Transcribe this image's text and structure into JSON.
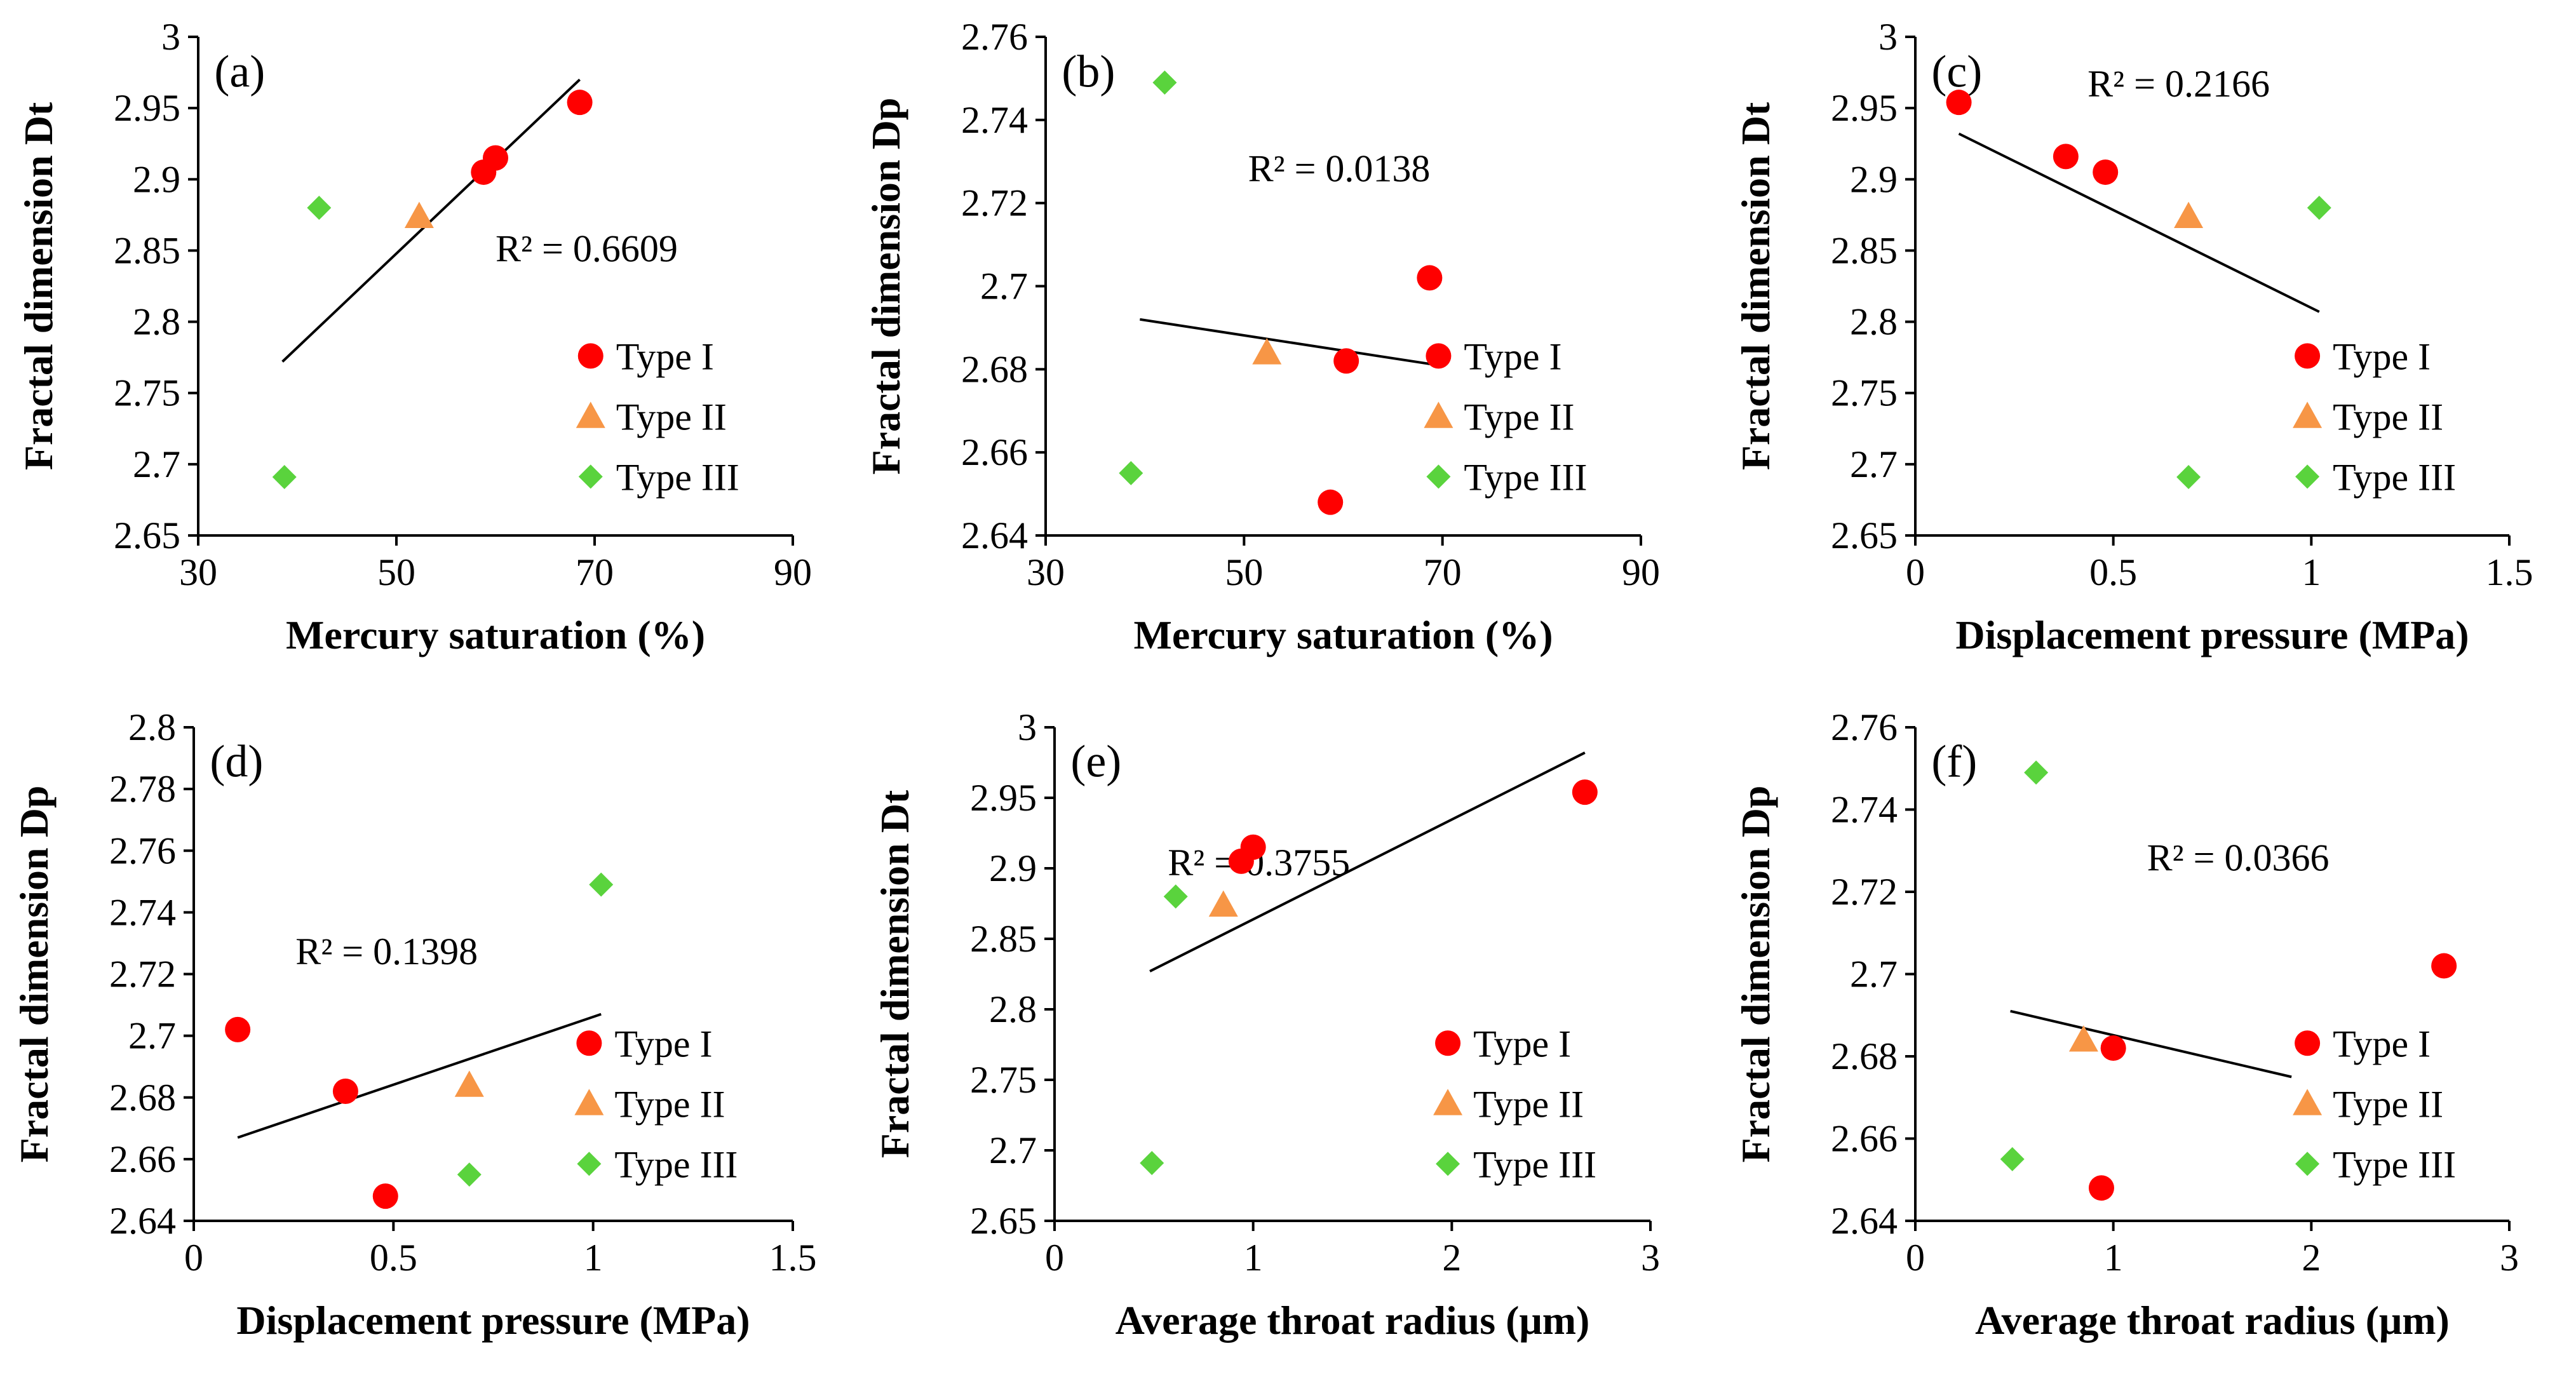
{
  "colors": {
    "type_i": "#ff0000",
    "type_ii": "#f79646",
    "type_iii": "#5ad33d",
    "line": "#000000"
  },
  "chart_data": [
    {
      "type": "scatter",
      "panel": "(a)",
      "xlabel": "Mercury saturation (%)",
      "ylabel": "Fractal dimension Dt",
      "xlim": [
        30,
        90
      ],
      "xticks": [
        30,
        50,
        70,
        90
      ],
      "xtick_labels": [
        "30",
        "50",
        "70",
        "90"
      ],
      "ylim": [
        2.65,
        3
      ],
      "yticks": [
        2.65,
        2.7,
        2.75,
        2.8,
        2.85,
        2.9,
        2.95,
        3
      ],
      "ytick_labels": [
        "2.65",
        "2.7",
        "2.75",
        "2.8",
        "2.85",
        "2.9",
        "2.95",
        "3"
      ],
      "r2": "R² = 0.6609",
      "trendline": {
        "x": [
          38.5,
          68.5
        ],
        "y": [
          2.772,
          2.97
        ]
      },
      "legend": [
        "Type I",
        "Type II",
        "Type III"
      ],
      "series": [
        {
          "name": "Type I",
          "marker": "circle",
          "x": [
            68.5,
            60.0,
            58.8
          ],
          "y": [
            2.954,
            2.915,
            2.905
          ]
        },
        {
          "name": "Type II",
          "marker": "triangle",
          "x": [
            52.3
          ],
          "y": [
            2.874
          ]
        },
        {
          "name": "Type III",
          "marker": "diamond",
          "x": [
            42.2,
            38.7
          ],
          "y": [
            2.88,
            2.691
          ]
        }
      ]
    },
    {
      "type": "scatter",
      "panel": "(b)",
      "xlabel": "Mercury saturation (%)",
      "ylabel": "Fractal dimension Dp",
      "xlim": [
        30,
        90
      ],
      "xticks": [
        30,
        50,
        70,
        90
      ],
      "xtick_labels": [
        "30",
        "50",
        "70",
        "90"
      ],
      "ylim": [
        2.64,
        2.76
      ],
      "yticks": [
        2.64,
        2.66,
        2.68,
        2.7,
        2.72,
        2.74,
        2.76
      ],
      "ytick_labels": [
        "2.64",
        "2.66",
        "2.68",
        "2.7",
        "2.72",
        "2.74",
        "2.76"
      ],
      "r2": "R² = 0.0138",
      "trendline": {
        "x": [
          39.5,
          69.5
        ],
        "y": [
          2.692,
          2.681
        ]
      },
      "legend": [
        "Type I",
        "Type II",
        "Type III"
      ],
      "series": [
        {
          "name": "Type I",
          "marker": "circle",
          "x": [
            68.7,
            60.3,
            58.7
          ],
          "y": [
            2.702,
            2.682,
            2.648
          ]
        },
        {
          "name": "Type II",
          "marker": "triangle",
          "x": [
            52.3
          ],
          "y": [
            2.684
          ]
        },
        {
          "name": "Type III",
          "marker": "diamond",
          "x": [
            42.0,
            38.6
          ],
          "y": [
            2.749,
            2.655
          ]
        }
      ]
    },
    {
      "type": "scatter",
      "panel": "(c)",
      "xlabel": "Displacement pressure (MPa)",
      "ylabel": "Fractal dimension Dt",
      "xlim": [
        0,
        1.5
      ],
      "xticks": [
        0,
        0.5,
        1,
        1.5
      ],
      "xtick_labels": [
        "0",
        "0.5",
        "1",
        "1.5"
      ],
      "ylim": [
        2.65,
        3
      ],
      "yticks": [
        2.65,
        2.7,
        2.75,
        2.8,
        2.85,
        2.9,
        2.95,
        3
      ],
      "ytick_labels": [
        "2.65",
        "2.7",
        "2.75",
        "2.8",
        "2.85",
        "2.9",
        "2.95",
        "3"
      ],
      "r2": "R² = 0.2166",
      "trendline": {
        "x": [
          0.11,
          1.02
        ],
        "y": [
          2.932,
          2.807
        ]
      },
      "legend": [
        "Type I",
        "Type II",
        "Type III"
      ],
      "series": [
        {
          "name": "Type I",
          "marker": "circle",
          "x": [
            0.11,
            0.38,
            0.48
          ],
          "y": [
            2.954,
            2.916,
            2.905
          ]
        },
        {
          "name": "Type II",
          "marker": "triangle",
          "x": [
            0.69
          ],
          "y": [
            2.874
          ]
        },
        {
          "name": "Type III",
          "marker": "diamond",
          "x": [
            1.02,
            0.69
          ],
          "y": [
            2.88,
            2.691
          ]
        }
      ]
    },
    {
      "type": "scatter",
      "panel": "(d)",
      "xlabel": "Displacement pressure (MPa)",
      "ylabel": "Fractal dimension Dp",
      "xlim": [
        0,
        1.5
      ],
      "xticks": [
        0,
        0.5,
        1,
        1.5
      ],
      "xtick_labels": [
        "0",
        "0.5",
        "1",
        "1.5"
      ],
      "ylim": [
        2.64,
        2.8
      ],
      "yticks": [
        2.64,
        2.66,
        2.68,
        2.7,
        2.72,
        2.74,
        2.76,
        2.78,
        2.8
      ],
      "ytick_labels": [
        "2.64",
        "2.66",
        "2.68",
        "2.7",
        "2.72",
        "2.74",
        "2.76",
        "2.78",
        "2.8"
      ],
      "r2": "R² = 0.1398",
      "trendline": {
        "x": [
          0.11,
          1.02
        ],
        "y": [
          2.667,
          2.707
        ]
      },
      "legend": [
        "Type I",
        "Type II",
        "Type III"
      ],
      "series": [
        {
          "name": "Type I",
          "marker": "circle",
          "x": [
            0.11,
            0.38,
            0.48
          ],
          "y": [
            2.702,
            2.682,
            2.648
          ]
        },
        {
          "name": "Type II",
          "marker": "triangle",
          "x": [
            0.69
          ],
          "y": [
            2.684
          ]
        },
        {
          "name": "Type III",
          "marker": "diamond",
          "x": [
            1.02,
            0.69
          ],
          "y": [
            2.749,
            2.655
          ]
        }
      ]
    },
    {
      "type": "scatter",
      "panel": "(e)",
      "xlabel": "Average throat radius (μm)",
      "ylabel": "Fractal dimension Dt",
      "xlim": [
        0,
        3
      ],
      "xticks": [
        0,
        1,
        2,
        3
      ],
      "xtick_labels": [
        "0",
        "1",
        "2",
        "3"
      ],
      "ylim": [
        2.65,
        3
      ],
      "yticks": [
        2.65,
        2.7,
        2.75,
        2.8,
        2.85,
        2.9,
        2.95,
        3
      ],
      "ytick_labels": [
        "2.65",
        "2.7",
        "2.75",
        "2.8",
        "2.85",
        "2.9",
        "2.95",
        "3"
      ],
      "r2": "R² = 0.3755",
      "trendline": {
        "x": [
          0.48,
          2.67
        ],
        "y": [
          2.827,
          2.982
        ]
      },
      "legend": [
        "Type I",
        "Type II",
        "Type III"
      ],
      "series": [
        {
          "name": "Type I",
          "marker": "circle",
          "x": [
            2.67,
            1.0,
            0.94
          ],
          "y": [
            2.954,
            2.915,
            2.905
          ]
        },
        {
          "name": "Type II",
          "marker": "triangle",
          "x": [
            0.85
          ],
          "y": [
            2.874
          ]
        },
        {
          "name": "Type III",
          "marker": "diamond",
          "x": [
            0.61,
            0.49
          ],
          "y": [
            2.88,
            2.691
          ]
        }
      ]
    },
    {
      "type": "scatter",
      "panel": "(f)",
      "xlabel": "Average throat radius (μm)",
      "ylabel": "Fractal dimension Dp",
      "xlim": [
        0,
        3
      ],
      "xticks": [
        0,
        1,
        2,
        3
      ],
      "xtick_labels": [
        "0",
        "1",
        "2",
        "3"
      ],
      "ylim": [
        2.64,
        2.76
      ],
      "yticks": [
        2.64,
        2.66,
        2.68,
        2.7,
        2.72,
        2.74,
        2.76
      ],
      "ytick_labels": [
        "2.64",
        "2.66",
        "2.68",
        "2.7",
        "2.72",
        "2.74",
        "2.76"
      ],
      "r2": "R² = 0.0366",
      "trendline": {
        "x": [
          0.48,
          1.9
        ],
        "y": [
          2.691,
          2.675
        ]
      },
      "legend": [
        "Type I",
        "Type II",
        "Type III"
      ],
      "series": [
        {
          "name": "Type I",
          "marker": "circle",
          "x": [
            2.67,
            1.0,
            0.94
          ],
          "y": [
            2.702,
            2.682,
            2.648
          ]
        },
        {
          "name": "Type II",
          "marker": "triangle",
          "x": [
            0.85
          ],
          "y": [
            2.684
          ]
        },
        {
          "name": "Type III",
          "marker": "diamond",
          "x": [
            0.61,
            0.49
          ],
          "y": [
            2.749,
            2.655
          ]
        }
      ]
    }
  ]
}
